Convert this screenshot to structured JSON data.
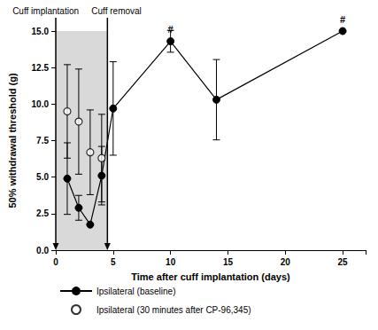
{
  "chart_data": {
    "type": "line",
    "x_label": "Time after cuff implantation (days)",
    "y_label": "50% withdrawal threshold (g)",
    "xlim": [
      0,
      27
    ],
    "xticks": [
      0,
      5,
      10,
      15,
      20,
      25
    ],
    "ylim": [
      0,
      15
    ],
    "yticks": [
      {
        "value": 0,
        "label": "0.0"
      },
      {
        "value": 2.5,
        "label": "2.5"
      },
      {
        "value": 5,
        "label": "5.0"
      },
      {
        "value": 7.5,
        "label": "7.5"
      },
      {
        "value": 10,
        "label": "10.0"
      },
      {
        "value": 12.5,
        "label": "12.5"
      },
      {
        "value": 15,
        "label": "15.0"
      }
    ],
    "grid": false,
    "legend": "bottom",
    "series": [
      {
        "name": "Ipsilateral (baseline)",
        "type": "line",
        "marker": "filled_circle",
        "color": "#000000",
        "x": [
          1,
          2,
          3,
          4,
          5,
          10,
          14,
          25
        ],
        "values": [
          4.9,
          2.9,
          1.75,
          5.1,
          9.7,
          14.3,
          10.3,
          15.0
        ],
        "errors": [
          2.45,
          0.85,
          null,
          2.0,
          3.2,
          0.75,
          2.75,
          null
        ]
      },
      {
        "name": "Ipsilateral (30 minutes after CP-96,345)",
        "type": "scatter",
        "marker": "open_circle",
        "color": "#000000",
        "x": [
          1,
          2,
          3,
          4
        ],
        "values": [
          9.5,
          8.8,
          6.7,
          6.3
        ],
        "errors": [
          3.2,
          3.6,
          2.9,
          3.0
        ]
      }
    ],
    "shaded_region": {
      "x": [
        0,
        4.5
      ],
      "color": "#d9d9d9"
    },
    "annotations": [
      {
        "text": "Cuff implantation",
        "x": 0,
        "kind": "arrow"
      },
      {
        "text": "Cuff removal",
        "x": 4.5,
        "kind": "arrow"
      },
      {
        "text": "#",
        "x": 10,
        "y": 14.3,
        "kind": "mark"
      },
      {
        "text": "#",
        "x": 25,
        "y": 15.0,
        "kind": "mark"
      }
    ]
  }
}
